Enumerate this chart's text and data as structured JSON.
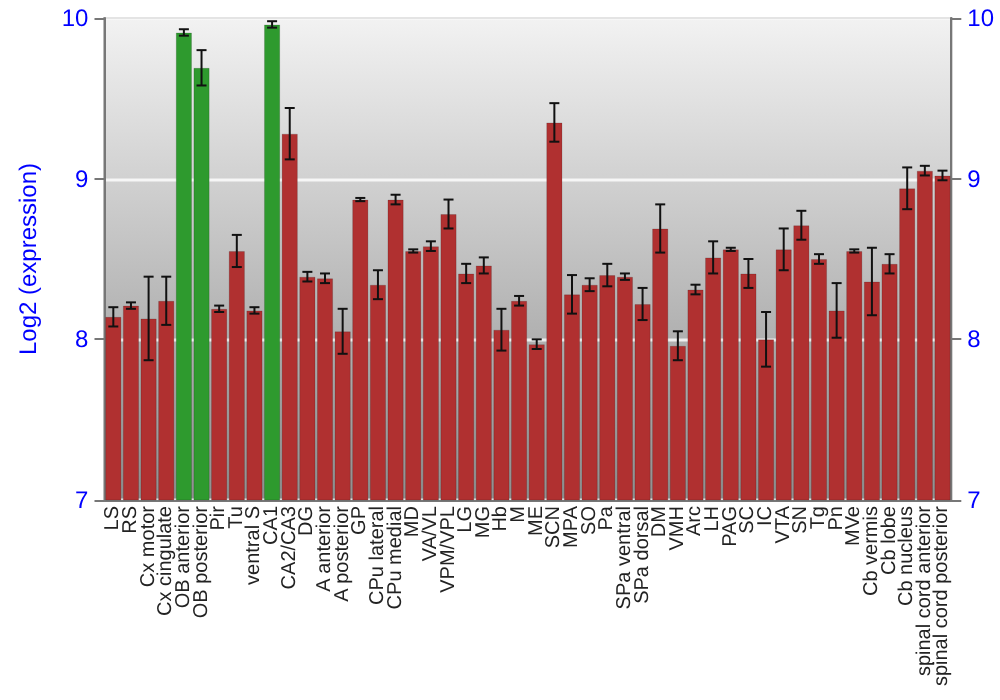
{
  "chart_data": {
    "type": "bar",
    "ylabel": "Log2 (expression)",
    "categories": [
      "LS",
      "RS",
      "Cx motor",
      "Cx cingulate",
      "OB anterior",
      "OB posterior",
      "Pir",
      "Tu",
      "ventral S",
      "CA1",
      "CA2/CA3",
      "DG",
      "A anterior",
      "A posterior",
      "GP",
      "CPu lateral",
      "CPu medial",
      "MD",
      "VA/VL",
      "VPM/VPL",
      "LG",
      "MG",
      "Hb",
      "M",
      "ME",
      "SCN",
      "MPA",
      "SO",
      "Pa",
      "SPa ventral",
      "SPa dorsal",
      "DM",
      "VMH",
      "Arc",
      "LH",
      "PAG",
      "SC",
      "IC",
      "VTA",
      "SN",
      "Tg",
      "Pn",
      "MVe",
      "Cb vermis",
      "Cb lobe",
      "Cb nucleus",
      "spinal cord anterior",
      "spinal cord posterior"
    ],
    "values": [
      8.14,
      8.21,
      8.13,
      8.24,
      9.91,
      9.69,
      8.19,
      8.55,
      8.18,
      9.96,
      9.28,
      8.39,
      8.38,
      8.05,
      8.87,
      8.34,
      8.87,
      8.55,
      8.58,
      8.78,
      8.41,
      8.46,
      8.06,
      8.24,
      7.97,
      9.35,
      8.28,
      8.34,
      8.4,
      8.39,
      8.22,
      8.69,
      7.96,
      8.31,
      8.51,
      8.56,
      8.41,
      8.0,
      8.56,
      8.71,
      8.5,
      8.18,
      8.55,
      8.36,
      8.47,
      8.94,
      9.05,
      9.02
    ],
    "errors": [
      0.06,
      0.02,
      0.26,
      0.15,
      0.02,
      0.11,
      0.02,
      0.1,
      0.02,
      0.02,
      0.16,
      0.03,
      0.03,
      0.14,
      0.01,
      0.09,
      0.03,
      0.01,
      0.03,
      0.09,
      0.06,
      0.05,
      0.13,
      0.03,
      0.03,
      0.12,
      0.12,
      0.04,
      0.07,
      0.02,
      0.1,
      0.15,
      0.09,
      0.03,
      0.1,
      0.01,
      0.09,
      0.17,
      0.13,
      0.09,
      0.03,
      0.17,
      0.01,
      0.21,
      0.06,
      0.13,
      0.03,
      0.03
    ],
    "colors": [
      "#b03030",
      "#b03030",
      "#b03030",
      "#b03030",
      "#2e9a2e",
      "#2e9a2e",
      "#b03030",
      "#b03030",
      "#b03030",
      "#2e9a2e",
      "#b03030",
      "#b03030",
      "#b03030",
      "#b03030",
      "#b03030",
      "#b03030",
      "#b03030",
      "#b03030",
      "#b03030",
      "#b03030",
      "#b03030",
      "#b03030",
      "#b03030",
      "#b03030",
      "#b03030",
      "#b03030",
      "#b03030",
      "#b03030",
      "#b03030",
      "#b03030",
      "#b03030",
      "#b03030",
      "#b03030",
      "#b03030",
      "#b03030",
      "#b03030",
      "#b03030",
      "#b03030",
      "#b03030",
      "#b03030",
      "#b03030",
      "#b03030",
      "#b03030",
      "#b03030",
      "#b03030",
      "#b03030",
      "#b03030",
      "#b03030"
    ],
    "ylim": [
      7,
      10
    ],
    "yticks": [
      7,
      8,
      9,
      10
    ],
    "y2lim": [
      7,
      10
    ],
    "y2ticks": [
      7,
      8,
      9,
      10
    ],
    "grid": "y"
  }
}
